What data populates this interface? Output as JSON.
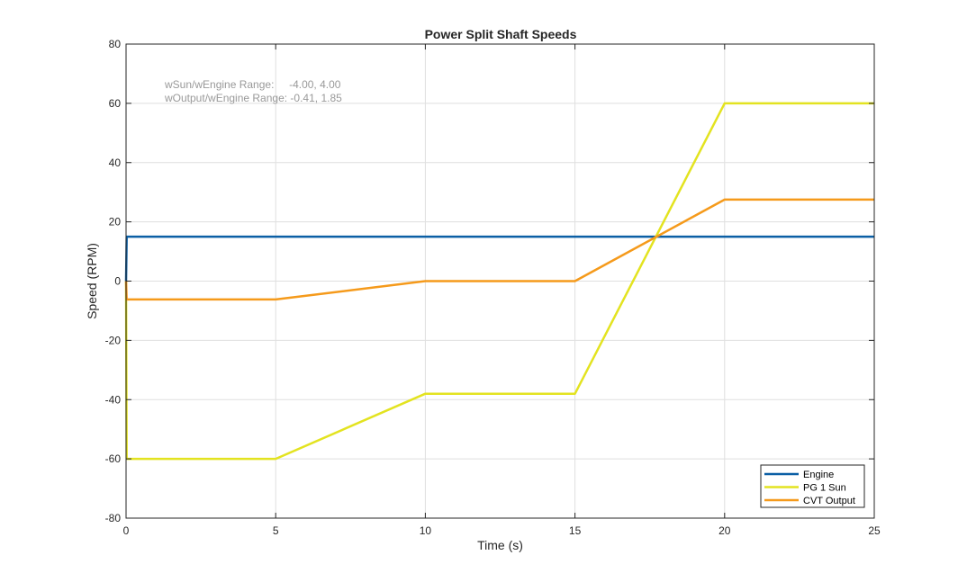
{
  "chart_data": {
    "type": "line",
    "title": "Power Split Shaft Speeds",
    "xlabel": "Time (s)",
    "ylabel": "Speed (RPM)",
    "xlim": [
      0,
      25
    ],
    "ylim": [
      -80,
      80
    ],
    "xticks": [
      0,
      5,
      10,
      15,
      20,
      25
    ],
    "yticks": [
      -80,
      -60,
      -40,
      -20,
      0,
      20,
      40,
      60,
      80
    ],
    "grid": true,
    "legend_position": "bottom-right",
    "annotations": [
      "wSun/wEngine Range:     -4.00, 4.00",
      "wOutput/wEngine Range: -0.41, 1.85"
    ],
    "annotation_color": "#999999",
    "series": [
      {
        "name": "Engine",
        "color": "#0b5fa5",
        "x": [
          0,
          0.02,
          25
        ],
        "y": [
          0,
          15,
          15
        ]
      },
      {
        "name": "PG 1 Sun",
        "color": "#e3e320",
        "x": [
          0,
          0.02,
          5,
          10,
          15,
          20,
          25
        ],
        "y": [
          0,
          -60,
          -60,
          -38,
          -38,
          60,
          60
        ]
      },
      {
        "name": "CVT Output",
        "color": "#f59a1b",
        "x": [
          0,
          0.02,
          5,
          10,
          15,
          20,
          25
        ],
        "y": [
          0,
          -6.2,
          -6.2,
          0,
          0,
          27.5,
          27.5
        ]
      }
    ]
  }
}
